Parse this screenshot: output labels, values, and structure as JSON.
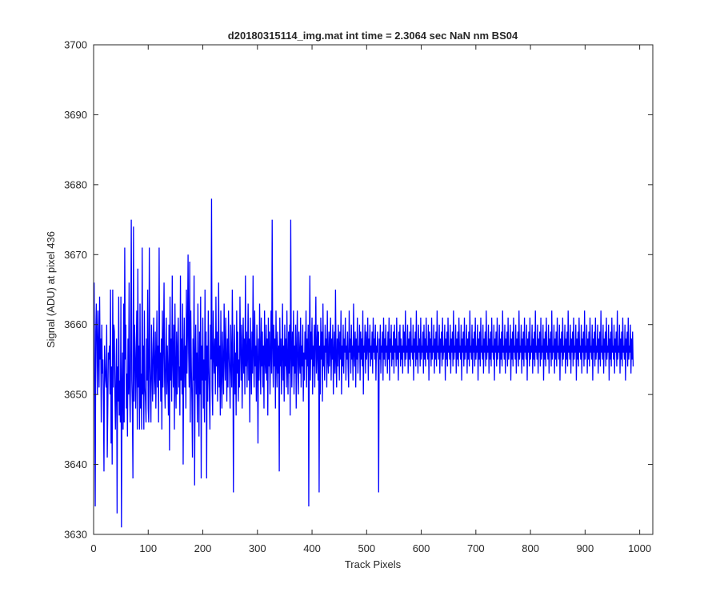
{
  "chart_data": {
    "type": "line",
    "title": "d20180315114_img.mat int time = 2.3064 sec  NaN nm BS04",
    "xlabel": "Track Pixels",
    "ylabel": "Signal (ADU) at pixel 436",
    "xlim": [
      0,
      1024
    ],
    "ylim": [
      3630,
      3700
    ],
    "xticks": [
      0,
      100,
      200,
      300,
      400,
      500,
      600,
      700,
      800,
      900,
      1000
    ],
    "yticks": [
      3630,
      3640,
      3650,
      3660,
      3670,
      3680,
      3690,
      3700
    ],
    "grid": false,
    "legend": "none",
    "series": [
      {
        "color": "#0000ff",
        "x_start": 1,
        "x_step": 1,
        "values": [
          3666,
          3650,
          3634,
          3659,
          3663,
          3657,
          3650,
          3662,
          3656,
          3651,
          3664,
          3655,
          3658,
          3646,
          3660,
          3653,
          3655,
          3649,
          3639,
          3657,
          3654,
          3652,
          3651,
          3660,
          3641,
          3648,
          3656,
          3655,
          3657,
          3650,
          3665,
          3643,
          3654,
          3640,
          3665,
          3651,
          3660,
          3659,
          3650,
          3645,
          3653,
          3658,
          3633,
          3654,
          3649,
          3664,
          3647,
          3652,
          3646,
          3664,
          3631,
          3651,
          3656,
          3645,
          3663,
          3646,
          3671,
          3655,
          3660,
          3648,
          3653,
          3644,
          3658,
          3650,
          3666,
          3651,
          3646,
          3657,
          3675,
          3652,
          3648,
          3638,
          3674,
          3649,
          3660,
          3656,
          3648,
          3655,
          3662,
          3645,
          3668,
          3651,
          3657,
          3645,
          3663,
          3648,
          3653,
          3645,
          3671,
          3650,
          3657,
          3645,
          3662,
          3651,
          3649,
          3646,
          3658,
          3652,
          3665,
          3648,
          3646,
          3671,
          3655,
          3650,
          3646,
          3660,
          3654,
          3649,
          3657,
          3661,
          3650,
          3653,
          3659,
          3648,
          3655,
          3662,
          3651,
          3657,
          3646,
          3671,
          3652,
          3656,
          3649,
          3658,
          3645,
          3662,
          3651,
          3657,
          3666,
          3652,
          3648,
          3655,
          3661,
          3650,
          3657,
          3653,
          3647,
          3660,
          3642,
          3664,
          3652,
          3658,
          3649,
          3667,
          3655,
          3651,
          3660,
          3645,
          3663,
          3653,
          3648,
          3659,
          3650,
          3656,
          3661,
          3651,
          3654,
          3647,
          3667,
          3652,
          3658,
          3650,
          3663,
          3640,
          3655,
          3661,
          3651,
          3657,
          3648,
          3665,
          3653,
          3659,
          3670,
          3656,
          3651,
          3669,
          3646,
          3662,
          3654,
          3649,
          3641,
          3658,
          3652,
          3667,
          3637,
          3655,
          3660,
          3650,
          3656,
          3646,
          3663,
          3653,
          3644,
          3659,
          3650,
          3664,
          3638,
          3657,
          3652,
          3661,
          3648,
          3655,
          3646,
          3665,
          3652,
          3659,
          3638,
          3657,
          3649,
          3662,
          3654,
          3650,
          3645,
          3660,
          3655,
          3678,
          3651,
          3647,
          3662,
          3656,
          3653,
          3658,
          3650,
          3664,
          3654,
          3659,
          3649,
          3655,
          3666,
          3651,
          3657,
          3647,
          3662,
          3653,
          3648,
          3659,
          3654,
          3650,
          3663,
          3656,
          3652,
          3661,
          3655,
          3649,
          3658,
          3651,
          3662,
          3656,
          3653,
          3648,
          3660,
          3655,
          3651,
          3665,
          3657,
          3636,
          3654,
          3660,
          3650,
          3656,
          3647,
          3662,
          3653,
          3659,
          3649,
          3655,
          3651,
          3664,
          3657,
          3652,
          3660,
          3648,
          3655,
          3661,
          3653,
          3658,
          3650,
          3667,
          3654,
          3659,
          3651,
          3656,
          3663,
          3652,
          3658,
          3646,
          3661,
          3655,
          3650,
          3659,
          3653,
          3667,
          3656,
          3651,
          3662,
          3654,
          3657,
          3649,
          3660,
          3655,
          3643,
          3658,
          3652,
          3663,
          3656,
          3650,
          3661,
          3654,
          3659,
          3651,
          3657,
          3648,
          3662,
          3655,
          3653,
          3660,
          3652,
          3658,
          3647,
          3661,
          3654,
          3659,
          3650,
          3656,
          3662,
          3653,
          3675,
          3657,
          3651,
          3660,
          3654,
          3658,
          3648,
          3662,
          3655,
          3651,
          3659,
          3653,
          3657,
          3639,
          3661,
          3654,
          3658,
          3650,
          3656,
          3663,
          3652,
          3657,
          3649,
          3660,
          3654,
          3658,
          3651,
          3662,
          3655,
          3650,
          3659,
          3653,
          3660,
          3647,
          3675,
          3656,
          3651,
          3659,
          3654,
          3662,
          3650,
          3657,
          3653,
          3660,
          3648,
          3656,
          3662,
          3654,
          3650,
          3659,
          3655,
          3653,
          3661,
          3651,
          3657,
          3654,
          3660,
          3649,
          3656,
          3652,
          3659,
          3655,
          3662,
          3651,
          3658,
          3654,
          3660,
          3634,
          3656,
          3667,
          3652,
          3659,
          3655,
          3661,
          3650,
          3657,
          3654,
          3660,
          3651,
          3658,
          3664,
          3653,
          3656,
          3660,
          3652,
          3659,
          3636,
          3657,
          3650,
          3661,
          3655,
          3659,
          3649,
          3663,
          3654,
          3657,
          3652,
          3660,
          3656,
          3658,
          3651,
          3662,
          3655,
          3653,
          3659,
          3654,
          3657,
          3661,
          3652,
          3658,
          3655,
          3660,
          3650,
          3656,
          3659,
          3653,
          3665,
          3655,
          3651,
          3658,
          3654,
          3660,
          3657,
          3652,
          3659,
          3655,
          3662,
          3650,
          3657,
          3654,
          3660,
          3653,
          3658,
          3656,
          3661,
          3652,
          3657,
          3655,
          3659,
          3654,
          3651,
          3662,
          3656,
          3658,
          3653,
          3660,
          3655,
          3657,
          3652,
          3663,
          3656,
          3654,
          3659,
          3651,
          3658,
          3655,
          3661,
          3653,
          3657,
          3656,
          3660,
          3652,
          3659,
          3655,
          3658,
          3654,
          3662,
          3650,
          3657,
          3656,
          3660,
          3653,
          3659,
          3655,
          3657,
          3661,
          3652,
          3658,
          3656,
          3660,
          3654,
          3657,
          3655,
          3659,
          3653,
          3661,
          3656,
          3658,
          3655,
          3660,
          3652,
          3657,
          3656,
          3659,
          3654,
          3636,
          3658,
          3655,
          3660,
          3653,
          3657,
          3656,
          3659,
          3652,
          3661,
          3655,
          3658,
          3654,
          3660,
          3656,
          3657,
          3653,
          3659,
          3655,
          3661,
          3652,
          3658,
          3656,
          3660,
          3654,
          3657,
          3655,
          3659,
          3653,
          3660,
          3656,
          3658,
          3654,
          3661,
          3655,
          3657,
          3652,
          3659,
          3656,
          3660,
          3654,
          3658,
          3655,
          3657,
          3653,
          3660,
          3656,
          3659,
          3654,
          3662,
          3655,
          3657,
          3656,
          3660,
          3653,
          3658,
          3655,
          3659,
          3654,
          3661,
          3656,
          3657,
          3655,
          3660,
          3652,
          3658,
          3656,
          3659,
          3654,
          3662,
          3655,
          3657,
          3653,
          3660,
          3656,
          3658,
          3654,
          3661,
          3655,
          3657,
          3656,
          3659,
          3653,
          3660,
          3655,
          3658,
          3654,
          3661,
          3656,
          3657,
          3655,
          3660,
          3652,
          3659,
          3656,
          3658,
          3654,
          3661,
          3655,
          3657,
          3656,
          3660,
          3653,
          3658,
          3655,
          3659,
          3654,
          3662,
          3656,
          3657,
          3655,
          3660,
          3653,
          3658,
          3656,
          3659,
          3654,
          3661,
          3655,
          3657,
          3656,
          3660,
          3652,
          3658,
          3655,
          3659,
          3654,
          3661,
          3656,
          3657,
          3655,
          3660,
          3653,
          3658,
          3656,
          3659,
          3654,
          3662,
          3655,
          3657,
          3656,
          3660,
          3653,
          3658,
          3655,
          3659,
          3654,
          3661,
          3656,
          3657,
          3655,
          3660,
          3652,
          3658,
          3656,
          3659,
          3654,
          3661,
          3655,
          3657,
          3656,
          3660,
          3653,
          3658,
          3655,
          3659,
          3654,
          3662,
          3656,
          3657,
          3655,
          3660,
          3653,
          3658,
          3656,
          3659,
          3654,
          3661,
          3655,
          3657,
          3656,
          3660,
          3652,
          3658,
          3655,
          3659,
          3654,
          3661,
          3656,
          3657,
          3655,
          3660,
          3653,
          3658,
          3656,
          3659,
          3654,
          3662,
          3655,
          3657,
          3656,
          3660,
          3653,
          3658,
          3655,
          3659,
          3654,
          3661,
          3656,
          3657,
          3655,
          3660,
          3652,
          3658,
          3656,
          3659,
          3654,
          3661,
          3655,
          3657,
          3656,
          3660,
          3653,
          3658,
          3655,
          3659,
          3654,
          3662,
          3656,
          3657,
          3655,
          3660,
          3653,
          3658,
          3656,
          3659,
          3654,
          3661,
          3655,
          3657,
          3656,
          3660,
          3652,
          3658,
          3655,
          3659,
          3654,
          3661,
          3656,
          3657,
          3655,
          3660,
          3653,
          3658,
          3656,
          3659,
          3654,
          3662,
          3655,
          3657,
          3656,
          3660,
          3653,
          3658,
          3655,
          3659,
          3654,
          3661,
          3656,
          3657,
          3655,
          3660,
          3652,
          3658,
          3656,
          3659,
          3654,
          3661,
          3655,
          3657,
          3656,
          3660,
          3653,
          3658,
          3655,
          3659,
          3654,
          3662,
          3656,
          3657,
          3655,
          3660,
          3653,
          3658,
          3656,
          3659,
          3654,
          3661,
          3655,
          3657,
          3656,
          3660,
          3652,
          3658,
          3655,
          3659,
          3654,
          3661,
          3656,
          3657,
          3655,
          3660,
          3653,
          3658,
          3656,
          3659,
          3654,
          3662,
          3655,
          3657,
          3656,
          3660,
          3653,
          3658,
          3655,
          3659,
          3654,
          3661,
          3656,
          3657,
          3655,
          3660,
          3652,
          3658,
          3656,
          3659,
          3654,
          3661,
          3655,
          3657,
          3656,
          3660,
          3653,
          3658,
          3655,
          3659,
          3654,
          3662,
          3656,
          3657,
          3655,
          3660,
          3653,
          3658,
          3656,
          3659,
          3654,
          3661,
          3655,
          3657,
          3656,
          3660,
          3652,
          3658,
          3655,
          3659,
          3654,
          3661,
          3656,
          3657,
          3655,
          3660,
          3653,
          3658,
          3656,
          3659,
          3654,
          3662,
          3655,
          3657,
          3656,
          3660,
          3653,
          3658,
          3655,
          3659,
          3654,
          3661,
          3656,
          3657,
          3655,
          3660,
          3652,
          3658,
          3656,
          3659,
          3654,
          3661,
          3655,
          3657,
          3656,
          3660,
          3653,
          3658,
          3655,
          3659,
          3654,
          3662,
          3656,
          3657,
          3655,
          3660,
          3653,
          3658,
          3656,
          3659,
          3654,
          3661,
          3655,
          3657,
          3656,
          3660,
          3652,
          3658,
          3655,
          3659,
          3654,
          3661,
          3656,
          3657,
          3655,
          3660,
          3653,
          3658,
          3656,
          3659,
          3654,
          3662,
          3655,
          3657,
          3656,
          3660,
          3653,
          3658,
          3655,
          3659,
          3654,
          3661,
          3656,
          3657,
          3655,
          3660,
          3652,
          3658,
          3656,
          3659,
          3654,
          3661,
          3655,
          3657,
          3656,
          3660,
          3653,
          3658,
          3655,
          3659,
          3654
        ]
      }
    ]
  }
}
